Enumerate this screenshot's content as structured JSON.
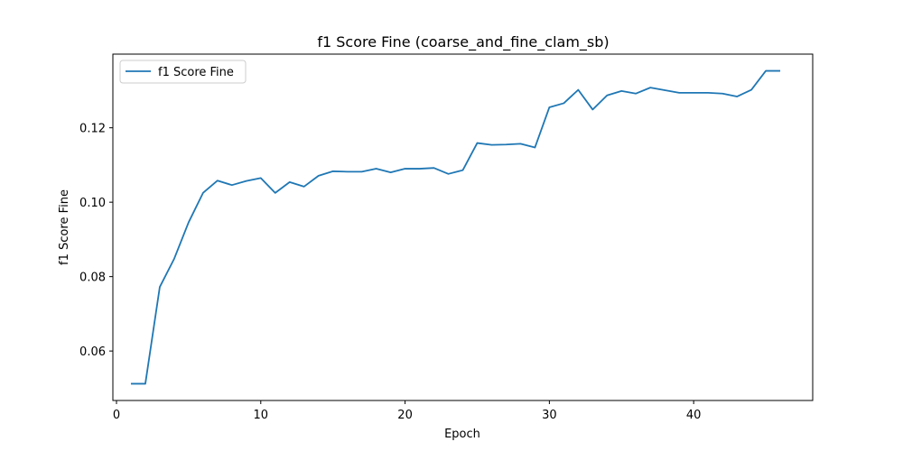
{
  "chart_data": {
    "type": "line",
    "title": "f1 Score Fine (coarse_and_fine_clam_sb)",
    "xlabel": "Epoch",
    "ylabel": "f1 Score Fine",
    "xlim": [
      -0.25,
      48.25
    ],
    "ylim": [
      0.0467,
      0.1398
    ],
    "xticks": [
      0,
      10,
      20,
      30,
      40
    ],
    "xtick_labels": [
      "0",
      "10",
      "20",
      "30",
      "40"
    ],
    "yticks": [
      0.06,
      0.08,
      0.1,
      0.12
    ],
    "ytick_labels": [
      "0.06",
      "0.08",
      "0.10",
      "0.12"
    ],
    "grid": false,
    "legend_position": "upper-left",
    "series": [
      {
        "name": "f1 Score Fine",
        "color": "#1f77b4",
        "x": [
          1,
          2,
          3,
          4,
          5,
          6,
          7,
          8,
          9,
          10,
          11,
          12,
          13,
          14,
          15,
          16,
          17,
          18,
          19,
          20,
          21,
          22,
          23,
          24,
          25,
          26,
          27,
          28,
          29,
          30,
          31,
          32,
          33,
          34,
          35,
          36,
          37,
          38,
          39,
          40,
          41,
          42,
          43,
          44,
          45,
          46
        ],
        "y": [
          0.0512,
          0.0512,
          0.0772,
          0.0848,
          0.0946,
          0.1025,
          0.1058,
          0.1046,
          0.1057,
          0.1065,
          0.1025,
          0.1054,
          0.1042,
          0.1071,
          0.1083,
          0.1082,
          0.1082,
          0.109,
          0.108,
          0.109,
          0.109,
          0.1092,
          0.1076,
          0.1086,
          0.1159,
          0.1154,
          0.1155,
          0.1157,
          0.1147,
          0.1255,
          0.1266,
          0.1302,
          0.1249,
          0.1287,
          0.1299,
          0.1292,
          0.1308,
          0.1301,
          0.1294,
          0.1294,
          0.1294,
          0.1292,
          0.1284,
          0.1302,
          0.1353,
          0.1353
        ]
      }
    ]
  }
}
